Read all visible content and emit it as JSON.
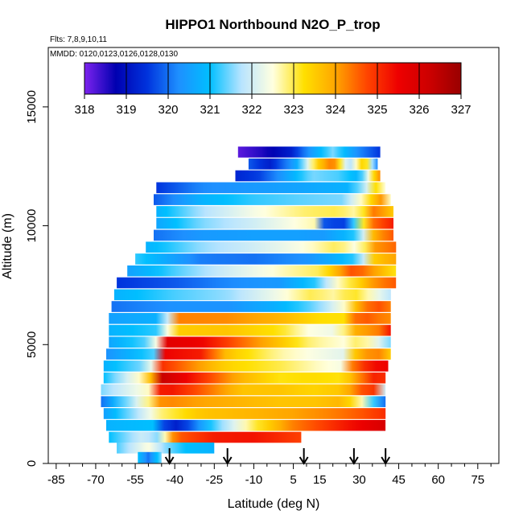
{
  "chart_data": {
    "type": "heatmap",
    "title": "HIPPO1 Northbound N2O_P_trop",
    "subtitle_flights": "Flts: 7,8,9,10,11",
    "subtitle_dates": "MMDD: 0120,0123,0126,0128,0130",
    "xlabel": "Latitude (deg N)",
    "ylabel": "Altitude (m)",
    "xlim": [
      -88,
      83
    ],
    "ylim": [
      0,
      17500
    ],
    "x_ticks": [
      -85,
      -70,
      -55,
      -40,
      -25,
      -10,
      5,
      15,
      30,
      45,
      60,
      75
    ],
    "x_tick_labels": [
      "-85",
      "-70",
      "-55",
      "-40",
      "-25",
      "-10",
      "5",
      "15",
      "30",
      "45",
      "60",
      "75"
    ],
    "y_ticks": [
      0,
      5000,
      10000,
      15000
    ],
    "y_tick_labels": [
      "0",
      "5000",
      "10000",
      "15000"
    ],
    "colorbar": {
      "min": 318,
      "max": 327,
      "ticks": [
        318,
        319,
        320,
        321,
        322,
        323,
        324,
        325,
        326,
        327
      ],
      "tick_labels": [
        "318",
        "319",
        "320",
        "321",
        "322",
        "323",
        "324",
        "325",
        "326",
        "327"
      ],
      "colors": [
        "#7d23ee",
        "#0000b0",
        "#0033dd",
        "#1e90ff",
        "#00bfff",
        "#b8e4ff",
        "#ffffe0",
        "#ffe000",
        "#ffa500",
        "#ff4500",
        "#ee0000",
        "#cc0000",
        "#990000"
      ]
    },
    "profile_arrow_latitudes": [
      -42,
      -20,
      9,
      28,
      40
    ],
    "bands": [
      {
        "alt": 13100,
        "x0": -16,
        "x1": 38,
        "stops": [
          [
            -16,
            318.2
          ],
          [
            -6,
            318.6
          ],
          [
            4,
            319.2
          ],
          [
            12,
            320.5
          ],
          [
            20,
            321.5
          ],
          [
            30,
            320.2
          ],
          [
            38,
            319.5
          ]
        ]
      },
      {
        "alt": 12600,
        "x0": -12,
        "x1": 37,
        "stops": [
          [
            -12,
            319.8
          ],
          [
            -4,
            319.2
          ],
          [
            6,
            320.6
          ],
          [
            14,
            323.4
          ],
          [
            20,
            324.5
          ],
          [
            26,
            321.5
          ],
          [
            32,
            323.8
          ],
          [
            37,
            320.2
          ]
        ]
      },
      {
        "alt": 12100,
        "x0": -17,
        "x1": 38,
        "stops": [
          [
            -17,
            319.3
          ],
          [
            -8,
            319.6
          ],
          [
            2,
            320.5
          ],
          [
            12,
            321.5
          ],
          [
            22,
            321.3
          ],
          [
            30,
            320.8
          ],
          [
            36,
            323.5
          ],
          [
            38,
            324.2
          ]
        ]
      },
      {
        "alt": 11600,
        "x0": -47,
        "x1": 40,
        "stops": [
          [
            -47,
            319.5
          ],
          [
            -30,
            320.2
          ],
          [
            -10,
            320.4
          ],
          [
            10,
            320.6
          ],
          [
            26,
            320.8
          ],
          [
            32,
            321.8
          ],
          [
            38,
            323.8
          ],
          [
            40,
            322.5
          ]
        ]
      },
      {
        "alt": 11100,
        "x0": -48,
        "x1": 42,
        "stops": [
          [
            -48,
            319.8
          ],
          [
            -30,
            320.8
          ],
          [
            -10,
            321.2
          ],
          [
            10,
            321.4
          ],
          [
            24,
            321.5
          ],
          [
            32,
            322.8
          ],
          [
            38,
            324.2
          ],
          [
            42,
            322.6
          ]
        ]
      },
      {
        "alt": 10600,
        "x0": -47,
        "x1": 43,
        "stops": [
          [
            -47,
            320.8
          ],
          [
            -30,
            321.7
          ],
          [
            -10,
            322.4
          ],
          [
            10,
            322.9
          ],
          [
            22,
            323.0
          ],
          [
            30,
            322.6
          ],
          [
            36,
            324.5
          ],
          [
            43,
            323.5
          ]
        ]
      },
      {
        "alt": 10100,
        "x0": -47,
        "x1": 43,
        "stops": [
          [
            -47,
            320.6
          ],
          [
            -30,
            321.5
          ],
          [
            -10,
            322.0
          ],
          [
            6,
            322.5
          ],
          [
            14,
            322.7
          ],
          [
            16,
            319.8
          ],
          [
            24,
            319.5
          ],
          [
            28,
            321.2
          ],
          [
            34,
            324.3
          ],
          [
            43,
            325.2
          ]
        ]
      },
      {
        "alt": 9600,
        "x0": -48,
        "x1": 43,
        "stops": [
          [
            -48,
            320.0
          ],
          [
            -30,
            320.4
          ],
          [
            -10,
            320.5
          ],
          [
            8,
            320.5
          ],
          [
            16,
            320.4
          ],
          [
            24,
            320.8
          ],
          [
            30,
            321.3
          ],
          [
            36,
            324.0
          ],
          [
            43,
            324.6
          ]
        ]
      },
      {
        "alt": 9100,
        "x0": -51,
        "x1": 44,
        "stops": [
          [
            -51,
            320.8
          ],
          [
            -30,
            321.6
          ],
          [
            -10,
            322.0
          ],
          [
            10,
            322.5
          ],
          [
            22,
            323.0
          ],
          [
            30,
            322.3
          ],
          [
            36,
            324.1
          ],
          [
            44,
            324.5
          ]
        ]
      },
      {
        "alt": 8600,
        "x0": -55,
        "x1": 44,
        "stops": [
          [
            -55,
            321.2
          ],
          [
            -40,
            320.5
          ],
          [
            -30,
            320.1
          ],
          [
            -10,
            320.0
          ],
          [
            10,
            320.3
          ],
          [
            22,
            320.8
          ],
          [
            30,
            321.3
          ],
          [
            36,
            323.6
          ],
          [
            44,
            324.0
          ]
        ]
      },
      {
        "alt": 8100,
        "x0": -58,
        "x1": 44,
        "stops": [
          [
            -58,
            320.5
          ],
          [
            -40,
            321.3
          ],
          [
            -20,
            322.0
          ],
          [
            0,
            322.6
          ],
          [
            16,
            323.0
          ],
          [
            28,
            324.8
          ],
          [
            36,
            324.0
          ],
          [
            44,
            323.2
          ]
        ]
      },
      {
        "alt": 7600,
        "x0": -62,
        "x1": 44,
        "stops": [
          [
            -62,
            319.5
          ],
          [
            -40,
            319.8
          ],
          [
            -20,
            320.2
          ],
          [
            0,
            320.4
          ],
          [
            14,
            321.2
          ],
          [
            22,
            322.6
          ],
          [
            30,
            323.4
          ],
          [
            36,
            324.2
          ],
          [
            44,
            324.6
          ]
        ]
      },
      {
        "alt": 7100,
        "x0": -63,
        "x1": 42,
        "stops": [
          [
            -63,
            320.8
          ],
          [
            -40,
            321.3
          ],
          [
            -20,
            321.6
          ],
          [
            0,
            322.4
          ],
          [
            12,
            323.0
          ],
          [
            20,
            322.7
          ],
          [
            28,
            323.2
          ],
          [
            34,
            322.6
          ],
          [
            42,
            321.8
          ]
        ]
      },
      {
        "alt": 6600,
        "x0": -64,
        "x1": 42,
        "stops": [
          [
            -64,
            320.0
          ],
          [
            -40,
            320.3
          ],
          [
            -20,
            320.3
          ],
          [
            0,
            320.8
          ],
          [
            14,
            321.5
          ],
          [
            24,
            322.5
          ],
          [
            30,
            324.0
          ],
          [
            36,
            324.8
          ],
          [
            42,
            324.3
          ]
        ]
      },
      {
        "alt": 6100,
        "x0": -65,
        "x1": 42,
        "stops": [
          [
            -65,
            320.5
          ],
          [
            -44,
            320.8
          ],
          [
            -40,
            324.3
          ],
          [
            -20,
            324.2
          ],
          [
            0,
            323.8
          ],
          [
            14,
            323.3
          ],
          [
            24,
            323.2
          ],
          [
            30,
            324.8
          ],
          [
            36,
            324.4
          ],
          [
            42,
            324.2
          ]
        ]
      },
      {
        "alt": 5600,
        "x0": -65,
        "x1": 42,
        "stops": [
          [
            -65,
            320.8
          ],
          [
            -46,
            321.2
          ],
          [
            -40,
            323.5
          ],
          [
            -20,
            323.6
          ],
          [
            0,
            323.2
          ],
          [
            10,
            322.5
          ],
          [
            22,
            322.3
          ],
          [
            30,
            324.2
          ],
          [
            36,
            324.0
          ],
          [
            42,
            325.3
          ]
        ]
      },
      {
        "alt": 5100,
        "x0": -65,
        "x1": 42,
        "stops": [
          [
            -65,
            320.6
          ],
          [
            -48,
            321.5
          ],
          [
            -44,
            325.8
          ],
          [
            -30,
            325.5
          ],
          [
            -15,
            324.5
          ],
          [
            0,
            323.6
          ],
          [
            12,
            322.8
          ],
          [
            24,
            322.5
          ],
          [
            30,
            323.0
          ],
          [
            36,
            322.4
          ],
          [
            42,
            321.5
          ]
        ]
      },
      {
        "alt": 4600,
        "x0": -66,
        "x1": 42,
        "stops": [
          [
            -66,
            320.3
          ],
          [
            -48,
            321.3
          ],
          [
            -44,
            325.5
          ],
          [
            -30,
            325.2
          ],
          [
            -20,
            323.6
          ],
          [
            0,
            322.7
          ],
          [
            14,
            322.4
          ],
          [
            24,
            322.2
          ],
          [
            28,
            323.5
          ],
          [
            36,
            324.5
          ],
          [
            42,
            323.5
          ]
        ]
      },
      {
        "alt": 4100,
        "x0": -67,
        "x1": 41,
        "stops": [
          [
            -67,
            320.8
          ],
          [
            -50,
            321.6
          ],
          [
            -45,
            325.0
          ],
          [
            -30,
            324.0
          ],
          [
            -20,
            323.4
          ],
          [
            0,
            323.0
          ],
          [
            14,
            322.6
          ],
          [
            24,
            322.4
          ],
          [
            28,
            324.6
          ],
          [
            36,
            325.4
          ],
          [
            41,
            325.5
          ]
        ]
      },
      {
        "alt": 3600,
        "x0": -67,
        "x1": 40,
        "stops": [
          [
            -67,
            321.0
          ],
          [
            -50,
            323.0
          ],
          [
            -46,
            326.4
          ],
          [
            -30,
            325.0
          ],
          [
            -15,
            323.8
          ],
          [
            0,
            323.2
          ],
          [
            12,
            323.3
          ],
          [
            24,
            323.2
          ],
          [
            30,
            324.2
          ],
          [
            36,
            325.2
          ],
          [
            40,
            325.0
          ]
        ]
      },
      {
        "alt": 3100,
        "x0": -68,
        "x1": 40,
        "stops": [
          [
            -68,
            321.5
          ],
          [
            -50,
            322.6
          ],
          [
            -45,
            325.5
          ],
          [
            -30,
            324.6
          ],
          [
            -15,
            323.6
          ],
          [
            0,
            323.6
          ],
          [
            12,
            323.4
          ],
          [
            24,
            323.6
          ],
          [
            32,
            324.8
          ],
          [
            38,
            325.0
          ],
          [
            40,
            322.0
          ]
        ]
      },
      {
        "alt": 2600,
        "x0": -68,
        "x1": 40,
        "stops": [
          [
            -68,
            320.0
          ],
          [
            -50,
            322.8
          ],
          [
            -45,
            324.3
          ],
          [
            -30,
            324.0
          ],
          [
            -15,
            323.8
          ],
          [
            0,
            323.6
          ],
          [
            14,
            323.6
          ],
          [
            24,
            323.8
          ],
          [
            32,
            322.5
          ],
          [
            38,
            320.3
          ],
          [
            40,
            320.0
          ]
        ]
      },
      {
        "alt": 2100,
        "x0": -67,
        "x1": 40,
        "stops": [
          [
            -67,
            320.5
          ],
          [
            -52,
            322.0
          ],
          [
            -46,
            322.8
          ],
          [
            -30,
            323.6
          ],
          [
            -10,
            323.8
          ],
          [
            5,
            324.0
          ],
          [
            20,
            324.3
          ],
          [
            30,
            324.6
          ],
          [
            40,
            325.0
          ]
        ]
      },
      {
        "alt": 1600,
        "x0": -66,
        "x1": 40,
        "stops": [
          [
            -66,
            320.8
          ],
          [
            -48,
            321.0
          ],
          [
            -42,
            319.0
          ],
          [
            -36,
            319.5
          ],
          [
            -25,
            321.3
          ],
          [
            -10,
            323.0
          ],
          [
            5,
            324.3
          ],
          [
            20,
            325.0
          ],
          [
            30,
            325.5
          ],
          [
            40,
            326.0
          ]
        ]
      },
      {
        "alt": 1100,
        "x0": -65,
        "x1": 8,
        "stops": [
          [
            -65,
            321.0
          ],
          [
            -52,
            322.0
          ],
          [
            -46,
            321.5
          ],
          [
            -40,
            324.5
          ],
          [
            -25,
            325.2
          ],
          [
            -10,
            325.3
          ],
          [
            8,
            324.8
          ]
        ]
      },
      {
        "alt": 650,
        "x0": -62,
        "x1": -25,
        "stops": [
          [
            -62,
            321.3
          ],
          [
            -50,
            322.5
          ],
          [
            -44,
            321.6
          ],
          [
            -36,
            321.0
          ],
          [
            -25,
            320.8
          ]
        ]
      },
      {
        "alt": 250,
        "x0": -54,
        "x1": -45,
        "stops": [
          [
            -54,
            321.0
          ],
          [
            -50,
            320.0
          ],
          [
            -45,
            321.5
          ]
        ]
      }
    ]
  }
}
